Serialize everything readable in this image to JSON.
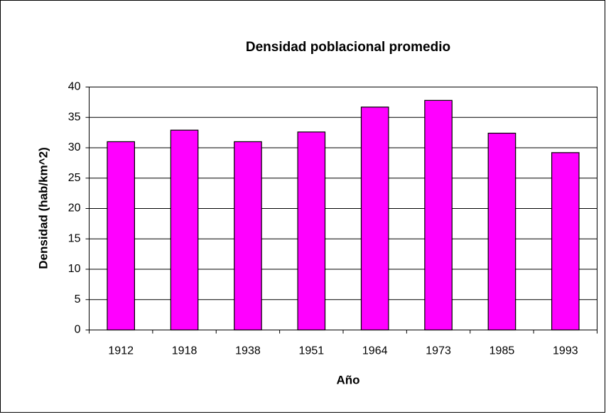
{
  "chart_data": {
    "type": "bar",
    "title": "Densidad poblacional promedio",
    "x_label": "Año",
    "y_label": "Densidad (hab/km^2)",
    "categories": [
      "1912",
      "1918",
      "1938",
      "1951",
      "1964",
      "1973",
      "1985",
      "1993"
    ],
    "values": [
      31.0,
      32.9,
      31.0,
      32.6,
      36.7,
      37.8,
      32.4,
      29.2
    ],
    "color": "#ff00ff",
    "ylim": [
      0,
      40
    ],
    "yticks": [
      0,
      5,
      10,
      15,
      20,
      25,
      30,
      35,
      40
    ],
    "grid": true
  }
}
